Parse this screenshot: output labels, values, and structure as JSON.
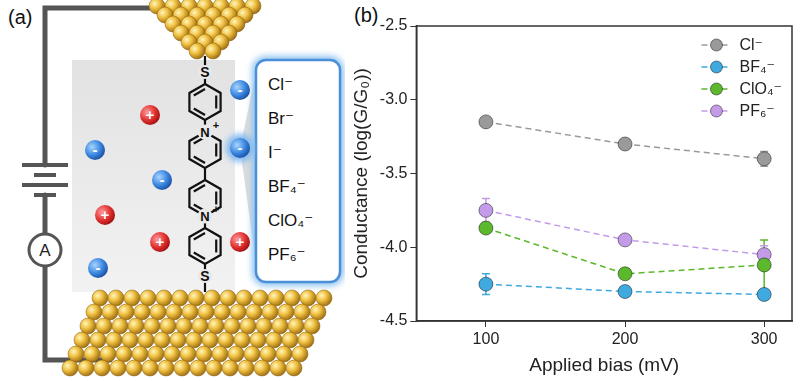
{
  "panel_a": {
    "label": "(a)",
    "ammeter": "A",
    "sulfur": "S",
    "nitrogen": "N",
    "charge": "+",
    "cation_sign": "+",
    "anion_sign": "-",
    "anions": [
      "Cl⁻",
      "Br⁻",
      "I⁻",
      "BF₄⁻",
      "ClO₄⁻",
      "PF₆⁻"
    ]
  },
  "chart_data": {
    "type": "line",
    "panel_label": "(b)",
    "x_label": "Applied bias (mV)",
    "y_label": "Conductance (log(G/G₀))",
    "x": [
      100,
      200,
      300
    ],
    "xlim": [
      50,
      320
    ],
    "xticks": [
      100,
      200,
      300
    ],
    "ylim": [
      -4.5,
      -2.5
    ],
    "yticks": [
      -4.5,
      {
        "value": -4,
        "label": "-4.0"
      },
      -3.5,
      {
        "value": -3,
        "label": "-3.0"
      },
      -2.5
    ],
    "grid": false,
    "legend": "upper right",
    "marker": "circle",
    "line_style": "dashed",
    "series": [
      {
        "name": "Cl⁻",
        "color": "#9a9a9a",
        "values": [
          -3.15,
          -3.3,
          -3.4
        ],
        "errors": [
          0.01,
          0.02,
          0.05
        ]
      },
      {
        "name": "BF₄⁻",
        "color": "#3fa9e0",
        "values": [
          -4.25,
          -4.3,
          -4.32
        ],
        "errors": [
          0.07,
          0.02,
          0.02
        ]
      },
      {
        "name": "ClO₄⁻",
        "color": "#5cb82c",
        "values": [
          -3.87,
          -4.18,
          -4.12
        ],
        "errors": [
          0.02,
          0.02,
          0.17
        ]
      },
      {
        "name": "PF₆⁻",
        "color": "#c39be8",
        "values": [
          -3.75,
          -3.95,
          -4.05
        ],
        "errors": [
          0.08,
          0.02,
          0.06
        ]
      }
    ]
  }
}
